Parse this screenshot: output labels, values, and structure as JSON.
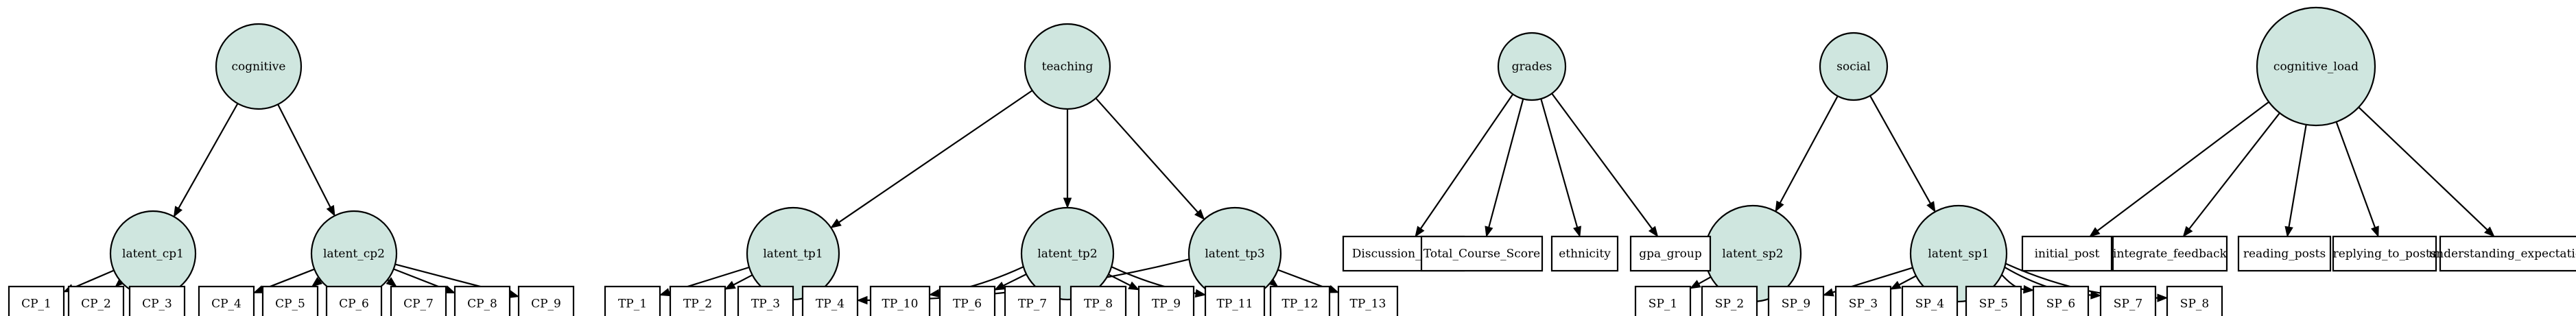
{
  "diagram": {
    "type": "directed-graph",
    "colors": {
      "latent_fill": "#cfe6df",
      "box_fill": "#ffffff",
      "stroke": "#000000"
    },
    "latent_nodes": [
      {
        "id": "cognitive",
        "label": "cognitive"
      },
      {
        "id": "latent_cp1",
        "label": "latent_cp1"
      },
      {
        "id": "latent_cp2",
        "label": "latent_cp2"
      },
      {
        "id": "teaching",
        "label": "teaching"
      },
      {
        "id": "latent_tp1",
        "label": "latent_tp1"
      },
      {
        "id": "latent_tp2",
        "label": "latent_tp2"
      },
      {
        "id": "latent_tp3",
        "label": "latent_tp3"
      },
      {
        "id": "grades",
        "label": "grades"
      },
      {
        "id": "social",
        "label": "social"
      },
      {
        "id": "latent_sp2",
        "label": "latent_sp2"
      },
      {
        "id": "latent_sp1",
        "label": "latent_sp1"
      },
      {
        "id": "cognitive_load",
        "label": "cognitive_load"
      }
    ],
    "observed_nodes": [
      {
        "id": "CP_1",
        "label": "CP_1"
      },
      {
        "id": "CP_2",
        "label": "CP_2"
      },
      {
        "id": "CP_3",
        "label": "CP_3"
      },
      {
        "id": "CP_4",
        "label": "CP_4"
      },
      {
        "id": "CP_5",
        "label": "CP_5"
      },
      {
        "id": "CP_6",
        "label": "CP_6"
      },
      {
        "id": "CP_7",
        "label": "CP_7"
      },
      {
        "id": "CP_8",
        "label": "CP_8"
      },
      {
        "id": "CP_9",
        "label": "CP_9"
      },
      {
        "id": "TP_1",
        "label": "TP_1"
      },
      {
        "id": "TP_2",
        "label": "TP_2"
      },
      {
        "id": "TP_3",
        "label": "TP_3"
      },
      {
        "id": "TP_4",
        "label": "TP_4"
      },
      {
        "id": "TP_10",
        "label": "TP_10"
      },
      {
        "id": "TP_6",
        "label": "TP_6"
      },
      {
        "id": "TP_7",
        "label": "TP_7"
      },
      {
        "id": "TP_8",
        "label": "TP_8"
      },
      {
        "id": "TP_9",
        "label": "TP_9"
      },
      {
        "id": "TP_11",
        "label": "TP_11"
      },
      {
        "id": "TP_12",
        "label": "TP_12"
      },
      {
        "id": "TP_13",
        "label": "TP_13"
      },
      {
        "id": "Discussion_Score",
        "label": "Discussion_Score"
      },
      {
        "id": "Total_Course_Score",
        "label": "Total_Course_Score"
      },
      {
        "id": "ethnicity",
        "label": "ethnicity"
      },
      {
        "id": "gpa_group",
        "label": "gpa_group"
      },
      {
        "id": "SP_1",
        "label": "SP_1"
      },
      {
        "id": "SP_2",
        "label": "SP_2"
      },
      {
        "id": "SP_9",
        "label": "SP_9"
      },
      {
        "id": "SP_3",
        "label": "SP_3"
      },
      {
        "id": "SP_4",
        "label": "SP_4"
      },
      {
        "id": "SP_5",
        "label": "SP_5"
      },
      {
        "id": "SP_6",
        "label": "SP_6"
      },
      {
        "id": "SP_7",
        "label": "SP_7"
      },
      {
        "id": "SP_8",
        "label": "SP_8"
      },
      {
        "id": "initial_post",
        "label": "initial_post"
      },
      {
        "id": "integrate_feedback",
        "label": "integrate_feedback"
      },
      {
        "id": "reading_posts",
        "label": "reading_posts"
      },
      {
        "id": "replying_to_posts",
        "label": "replying_to_posts"
      },
      {
        "id": "understanding_expectations",
        "label": "understanding_expectations"
      }
    ],
    "edges": [
      [
        "cognitive",
        "latent_cp1"
      ],
      [
        "cognitive",
        "latent_cp2"
      ],
      [
        "latent_cp1",
        "CP_1"
      ],
      [
        "latent_cp1",
        "CP_2"
      ],
      [
        "latent_cp1",
        "CP_3"
      ],
      [
        "latent_cp2",
        "CP_4"
      ],
      [
        "latent_cp2",
        "CP_5"
      ],
      [
        "latent_cp2",
        "CP_6"
      ],
      [
        "latent_cp2",
        "CP_7"
      ],
      [
        "latent_cp2",
        "CP_8"
      ],
      [
        "latent_cp2",
        "CP_9"
      ],
      [
        "teaching",
        "latent_tp1"
      ],
      [
        "teaching",
        "latent_tp2"
      ],
      [
        "teaching",
        "latent_tp3"
      ],
      [
        "latent_tp1",
        "TP_1"
      ],
      [
        "latent_tp1",
        "TP_2"
      ],
      [
        "latent_tp1",
        "TP_3"
      ],
      [
        "latent_tp1",
        "TP_4"
      ],
      [
        "latent_tp2",
        "TP_10"
      ],
      [
        "latent_tp2",
        "TP_6"
      ],
      [
        "latent_tp2",
        "TP_7"
      ],
      [
        "latent_tp2",
        "TP_8"
      ],
      [
        "latent_tp2",
        "TP_9"
      ],
      [
        "latent_tp2",
        "TP_11"
      ],
      [
        "latent_tp3",
        "TP_4"
      ],
      [
        "latent_tp3",
        "TP_11"
      ],
      [
        "latent_tp3",
        "TP_12"
      ],
      [
        "latent_tp3",
        "TP_13"
      ],
      [
        "grades",
        "Discussion_Score"
      ],
      [
        "grades",
        "Total_Course_Score"
      ],
      [
        "grades",
        "ethnicity"
      ],
      [
        "grades",
        "gpa_group"
      ],
      [
        "social",
        "latent_sp2"
      ],
      [
        "social",
        "latent_sp1"
      ],
      [
        "latent_sp2",
        "SP_1"
      ],
      [
        "latent_sp2",
        "SP_2"
      ],
      [
        "latent_sp2",
        "SP_9"
      ],
      [
        "latent_sp1",
        "SP_9"
      ],
      [
        "latent_sp1",
        "SP_3"
      ],
      [
        "latent_sp1",
        "SP_4"
      ],
      [
        "latent_sp1",
        "SP_5"
      ],
      [
        "latent_sp1",
        "SP_6"
      ],
      [
        "latent_sp1",
        "SP_7"
      ],
      [
        "latent_sp1",
        "SP_8"
      ],
      [
        "cognitive_load",
        "initial_post"
      ],
      [
        "cognitive_load",
        "integrate_feedback"
      ],
      [
        "cognitive_load",
        "reading_posts"
      ],
      [
        "cognitive_load",
        "replying_to_posts"
      ],
      [
        "cognitive_load",
        "understanding_expectations"
      ]
    ]
  }
}
